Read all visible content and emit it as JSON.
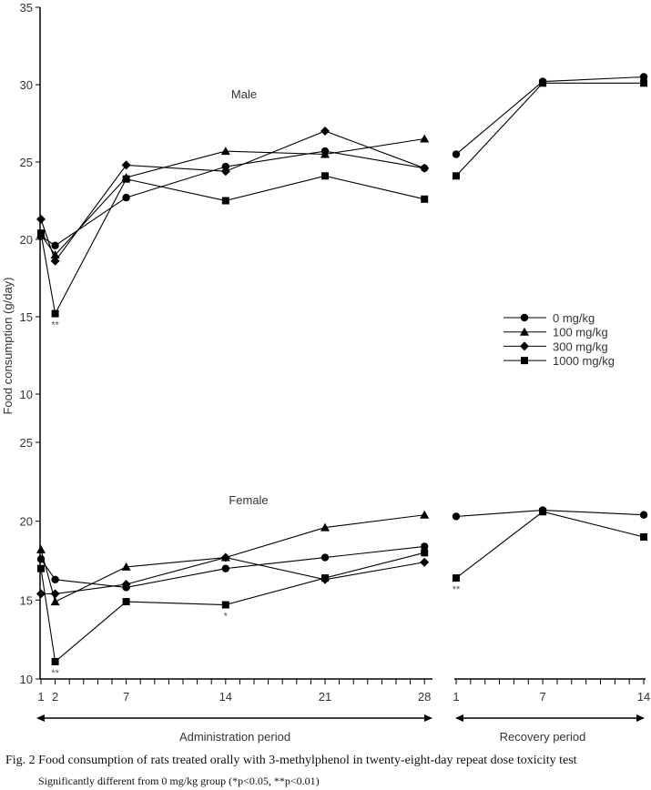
{
  "chart_data": {
    "type": "line",
    "ylabel": "Food consumption (g/day)",
    "legend": {
      "placement": "right",
      "entries": [
        "0 mg/kg",
        "100 mg/kg",
        "300 mg/kg",
        "1000 mg/kg"
      ]
    },
    "markers": [
      "circle",
      "triangle",
      "diamond",
      "square"
    ],
    "x_admin_ticks": [
      1,
      2,
      7,
      14,
      21,
      28
    ],
    "x_recovery_ticks": [
      1,
      7,
      14
    ],
    "admin_days": [
      1,
      2,
      7,
      14,
      21,
      28
    ],
    "recovery_days": [
      1,
      7,
      14
    ],
    "periods": {
      "admin": "Administration period",
      "recovery": "Recovery period"
    },
    "panels": [
      {
        "title": "Male",
        "ylim": [
          10,
          35
        ],
        "yticks": [
          10,
          15,
          20,
          25,
          30,
          35
        ],
        "series": [
          {
            "name": "0 mg/kg",
            "admin": [
              20.2,
              19.6,
              22.7,
              24.7,
              25.7,
              24.6
            ],
            "recovery": [
              25.5,
              30.2,
              30.5
            ]
          },
          {
            "name": "100 mg/kg",
            "admin": [
              20.3,
              19.0,
              24.0,
              25.7,
              25.5,
              26.5
            ],
            "recovery": null
          },
          {
            "name": "300 mg/kg",
            "admin": [
              21.3,
              18.6,
              24.8,
              24.4,
              27.0,
              24.6
            ],
            "recovery": null
          },
          {
            "name": "1000 mg/kg",
            "admin": [
              20.4,
              15.2,
              23.9,
              22.5,
              24.1,
              22.6
            ],
            "recovery": [
              24.1,
              30.1,
              30.1
            ]
          }
        ],
        "annotations": [
          {
            "text": "**",
            "period": "admin",
            "day": 2,
            "value": 15.2
          }
        ]
      },
      {
        "title": "Female",
        "ylim": [
          10,
          25
        ],
        "yticks": [
          10,
          15,
          20,
          25
        ],
        "series": [
          {
            "name": "0 mg/kg",
            "admin": [
              17.6,
              16.3,
              15.8,
              17.0,
              17.7,
              18.4
            ],
            "recovery": [
              20.3,
              20.7,
              20.4
            ]
          },
          {
            "name": "100 mg/kg",
            "admin": [
              18.2,
              14.9,
              17.1,
              17.7,
              19.6,
              20.4
            ],
            "recovery": null
          },
          {
            "name": "300 mg/kg",
            "admin": [
              15.4,
              15.4,
              16.0,
              17.7,
              16.3,
              17.4
            ],
            "recovery": null
          },
          {
            "name": "1000 mg/kg",
            "admin": [
              17.0,
              11.1,
              14.9,
              14.7,
              16.4,
              18.0
            ],
            "recovery": [
              16.4,
              20.6,
              19.0
            ]
          }
        ],
        "annotations": [
          {
            "text": "**",
            "period": "admin",
            "day": 2,
            "value": 11.1
          },
          {
            "text": "*",
            "period": "admin",
            "day": 14,
            "value": 14.7
          },
          {
            "text": "**",
            "period": "recovery",
            "day": 1,
            "value": 16.4
          }
        ]
      }
    ]
  },
  "caption": {
    "line1": "Fig. 2   Food consumption of rats treated orally with 3-methylphenol in twenty-eight-day repeat dose toxicity test",
    "line2": "Significantly different from 0 mg/kg group (*p<0.05, **p<0.01)"
  }
}
